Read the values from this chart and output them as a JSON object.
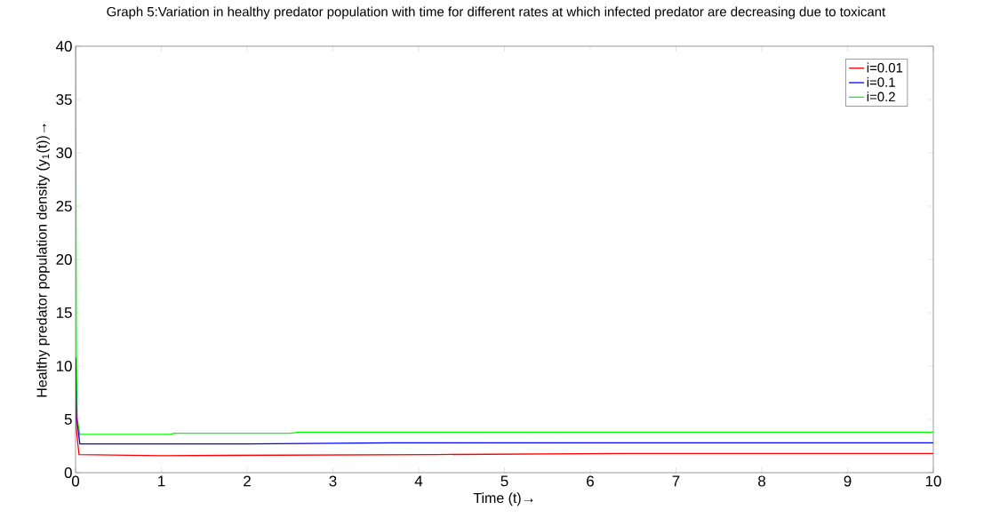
{
  "chart_data": {
    "type": "line",
    "title": "Graph 5:Variation in healthy predator population  with time for different rates at which infected predator are decreasing due to toxicant",
    "xlabel": "Time (t)→",
    "ylabel": "Healthy predator population density (y$_{1}$(t))→",
    "xlim": [
      0,
      10
    ],
    "ylim": [
      0,
      40
    ],
    "xticks": [
      0,
      1,
      2,
      3,
      4,
      5,
      6,
      7,
      8,
      9,
      10
    ],
    "yticks": [
      0,
      5,
      10,
      15,
      20,
      25,
      30,
      35,
      40
    ],
    "grid": false,
    "legend": "top right",
    "marker": "none",
    "line_style": "solid",
    "series": [
      {
        "name": "i=0.01",
        "color": "#ff0000",
        "x": [
          0,
          0.01,
          0.04,
          1,
          4.2,
          6.4,
          10
        ],
        "values": [
          9.5,
          4,
          1.7,
          1.6,
          1.7,
          1.8,
          1.8
        ]
      },
      {
        "name": "i=0.1",
        "color": "#0000ff",
        "x": [
          0,
          0.01,
          0.05,
          2,
          3.7,
          10
        ],
        "values": [
          10.8,
          5.3,
          2.7,
          2.7,
          2.8,
          2.8
        ]
      },
      {
        "name": "i=0.2",
        "color": "#00ff00",
        "x": [
          0,
          0.01,
          0.02,
          0.05,
          1.1,
          1.15,
          2.5,
          2.6,
          10
        ],
        "values": [
          40,
          10,
          5,
          3.6,
          3.6,
          3.7,
          3.7,
          3.8,
          3.8
        ]
      }
    ]
  }
}
